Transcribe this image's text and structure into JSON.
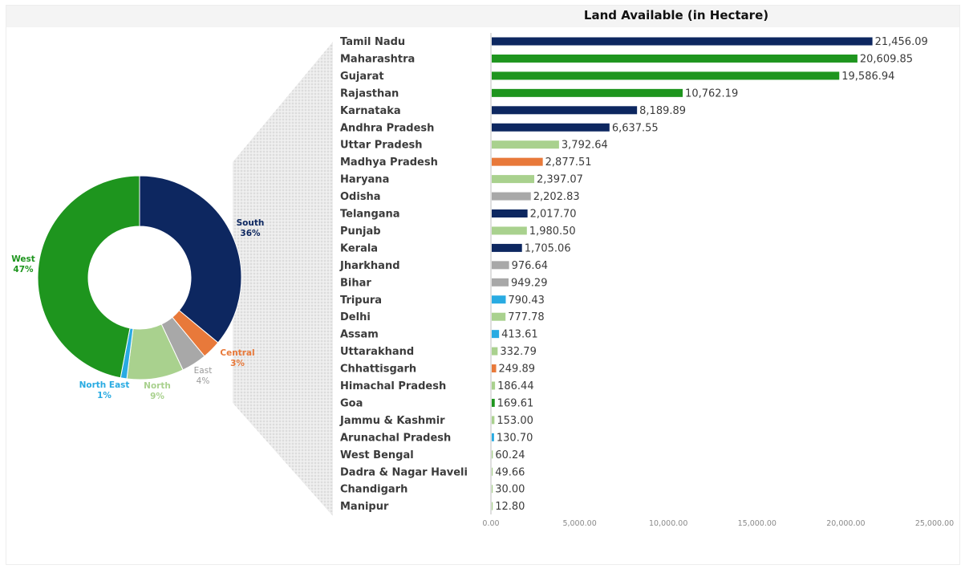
{
  "chart_data": [
    {
      "type": "pie",
      "title": "",
      "categories": [
        "South",
        "Central",
        "East",
        "North",
        "North East",
        "West"
      ],
      "labels": [
        {
          "name": "South",
          "pct": "36%"
        },
        {
          "name": "Central",
          "pct": "3%"
        },
        {
          "name": "East",
          "pct": "4%"
        },
        {
          "name": "North",
          "pct": "9%"
        },
        {
          "name": "North East",
          "pct": "1%"
        },
        {
          "name": "West",
          "pct": "47%"
        }
      ],
      "values": [
        36,
        3,
        4,
        9,
        1,
        47
      ],
      "colors": [
        "#0d2760",
        "#e8793a",
        "#a8a8a8",
        "#a9d18e",
        "#29abe2",
        "#1e951e"
      ],
      "donut": true
    },
    {
      "type": "bar",
      "orientation": "horizontal",
      "title": "Land Available (in Hectare)",
      "xlabel": "",
      "ylabel": "",
      "xlim": [
        0,
        25000
      ],
      "xticks": [
        "0.00",
        "5,000.00",
        "10,000.00",
        "15,000.00",
        "20,000.00",
        "25,000.00"
      ],
      "grid": false,
      "categories": [
        "Tamil Nadu",
        "Maharashtra",
        "Gujarat",
        "Rajasthan",
        "Karnataka",
        "Andhra Pradesh",
        "Uttar Pradesh",
        "Madhya Pradesh",
        "Haryana",
        "Odisha",
        "Telangana",
        "Punjab",
        "Kerala",
        "Jharkhand",
        "Bihar",
        "Tripura",
        "Delhi",
        "Assam",
        "Uttarakhand",
        "Chhattisgarh",
        "Himachal Pradesh",
        "Goa",
        "Jammu & Kashmir",
        "Arunachal Pradesh",
        "West Bengal",
        "Dadra & Nagar Haveli",
        "Chandigarh",
        "Manipur"
      ],
      "values": [
        21456.09,
        20609.85,
        19586.94,
        10762.19,
        8189.89,
        6637.55,
        3792.64,
        2877.51,
        2397.07,
        2202.83,
        2017.7,
        1980.5,
        1705.06,
        976.64,
        949.29,
        790.43,
        777.78,
        413.61,
        332.79,
        249.89,
        186.44,
        169.61,
        153.0,
        130.7,
        60.24,
        49.66,
        30.0,
        12.8
      ],
      "value_labels": [
        "21,456.09",
        "20,609.85",
        "19,586.94",
        "10,762.19",
        "8,189.89",
        "6,637.55",
        "3,792.64",
        "2,877.51",
        "2,397.07",
        "2,202.83",
        "2,017.70",
        "1,980.50",
        "1,705.06",
        "976.64",
        "949.29",
        "790.43",
        "777.78",
        "413.61",
        "332.79",
        "249.89",
        "186.44",
        "169.61",
        "153.00",
        "130.70",
        "60.24",
        "49.66",
        "30.00",
        "12.80"
      ],
      "bar_colors": [
        "#0d2760",
        "#1e951e",
        "#1e951e",
        "#1e951e",
        "#0d2760",
        "#0d2760",
        "#a9d18e",
        "#e8793a",
        "#a9d18e",
        "#a8a8a8",
        "#0d2760",
        "#a9d18e",
        "#0d2760",
        "#a8a8a8",
        "#a8a8a8",
        "#29abe2",
        "#a9d18e",
        "#29abe2",
        "#a9d18e",
        "#e8793a",
        "#a9d18e",
        "#1e951e",
        "#a9d18e",
        "#29abe2",
        "#a9d18e",
        "#a9d18e",
        "#a9d18e",
        "#a9d18e"
      ]
    }
  ]
}
